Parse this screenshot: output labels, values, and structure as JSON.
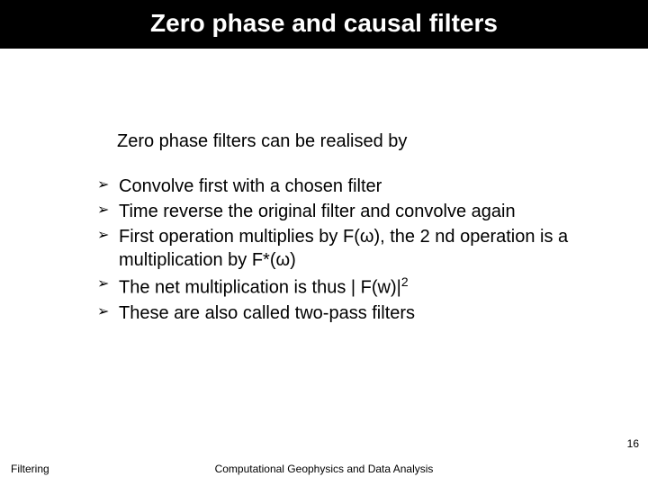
{
  "title": "Zero phase and causal filters",
  "intro": "Zero phase filters can be realised by",
  "bullets": [
    "Convolve first with a chosen filter",
    "Time reverse the original filter and convolve again",
    "First operation multiplies by F(ω), the 2 nd operation is a multiplication by F*(ω)",
    "The net multiplication is thus | F(w)|",
    "These are also called two-pass filters"
  ],
  "bullet_marker": "➢",
  "superscript_index": 3,
  "superscript_text": "2",
  "footer_left": "Filtering",
  "footer_center": "Computational Geophysics and Data Analysis",
  "page_number": "16",
  "colors": {
    "title_bg": "#000000",
    "title_fg": "#ffffff",
    "body_bg": "#ffffff",
    "text": "#000000"
  },
  "fontsizes": {
    "title": 28,
    "body": 20,
    "footer": 12
  }
}
